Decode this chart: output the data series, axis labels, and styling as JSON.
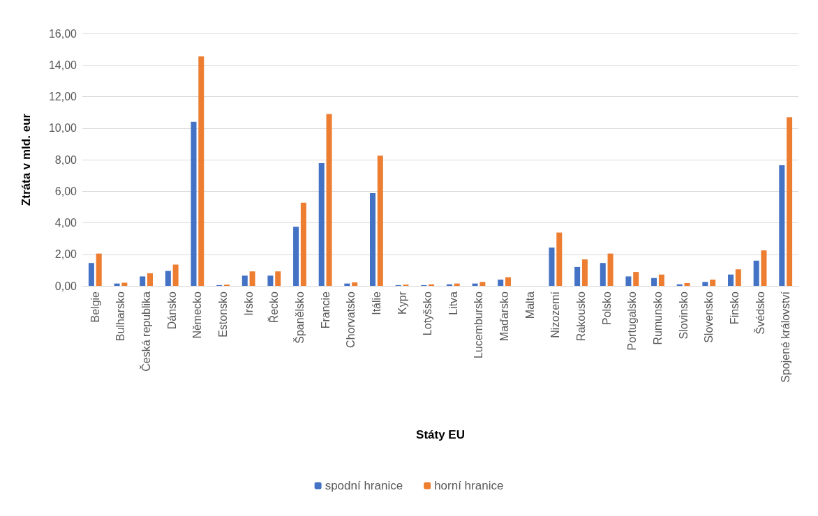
{
  "chart_data": {
    "type": "bar",
    "xlabel": "Státy EU",
    "ylabel": "Ztráta v mld. eur",
    "categories": [
      "Belgie",
      "Bulharsko",
      "Česká republika",
      "Dánsko",
      "Německo",
      "Estonsko",
      "Irsko",
      "Řecko",
      "Španělsko",
      "Francie",
      "Chorvatsko",
      "Itálie",
      "Kypr",
      "Lotyšsko",
      "Litva",
      "Lucembursko",
      "Maďarsko",
      "Malta",
      "Nizozemí",
      "Rakousko",
      "Polsko",
      "Portugalsko",
      "Rumunsko",
      "Slovinsko",
      "Slovensko",
      "Finsko",
      "Švédsko",
      "Spojené království"
    ],
    "series": [
      {
        "name": "spodní hranice",
        "color": "#4472c4",
        "values": [
          1.45,
          0.15,
          0.6,
          0.95,
          10.4,
          0.05,
          0.65,
          0.65,
          3.75,
          7.78,
          0.15,
          5.88,
          0.05,
          0.05,
          0.1,
          0.15,
          0.4,
          null,
          2.43,
          1.2,
          1.45,
          0.6,
          0.5,
          0.1,
          0.25,
          0.72,
          1.6,
          7.65
        ]
      },
      {
        "name": "horní hranice",
        "color": "#ed7d31",
        "values": [
          2.05,
          0.2,
          0.8,
          1.35,
          14.55,
          0.08,
          0.92,
          0.92,
          5.27,
          10.9,
          0.22,
          8.25,
          0.08,
          0.1,
          0.15,
          0.25,
          0.55,
          null,
          3.38,
          1.68,
          2.05,
          0.88,
          0.72,
          0.18,
          0.4,
          1.05,
          2.25,
          10.68
        ]
      }
    ],
    "ylim": [
      0,
      16
    ],
    "yticks": [
      {
        "value": 0,
        "label": "0,00"
      },
      {
        "value": 2,
        "label": "2,00"
      },
      {
        "value": 4,
        "label": "4,00"
      },
      {
        "value": 6,
        "label": "6,00"
      },
      {
        "value": 8,
        "label": "8,00"
      },
      {
        "value": 10,
        "label": "10,00"
      },
      {
        "value": 12,
        "label": "12,00"
      },
      {
        "value": 14,
        "label": "14,00"
      },
      {
        "value": 16,
        "label": "16,00"
      }
    ],
    "grid": "y",
    "legend": "bottom"
  }
}
